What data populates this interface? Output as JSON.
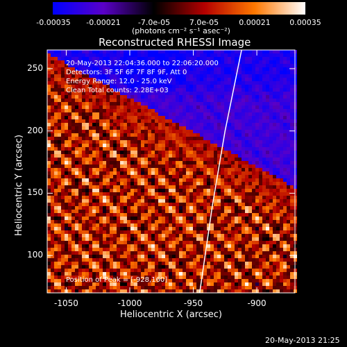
{
  "colorbar": {
    "ticks": [
      "-0.00035",
      "-0.00021",
      "-7.0e-05",
      "7.0e-05",
      "0.00021",
      "0.00035"
    ],
    "unit_label": "(photons cm⁻² s⁻¹ asec⁻²)",
    "range": [
      -0.00035,
      0.00035
    ],
    "colormap": [
      "#0000ff",
      "#5a00c8",
      "#000000",
      "#b40000",
      "#ff7800",
      "#ffffff"
    ]
  },
  "title": "Reconstructed RHESSI Image",
  "annotations": {
    "time_range": "20-May-2013 22:04:36.000 to 22:06:20.000",
    "detectors": "Detectors: 3F 5F 6F 7F 8F 9F, Att 0",
    "energy_range": "Energy Range: 12.0 - 25.0 keV",
    "clean": "Clean     Total counts: 2.28E+03",
    "peak": "Position of Peak = [-928,160]"
  },
  "footer_timestamp": "20-May-2013 21:25",
  "chart_data": {
    "type": "heatmap",
    "title": "Reconstructed RHESSI Image",
    "xlabel": "Heliocentric X (arcsec)",
    "ylabel": "Heliocentric Y (arcsec)",
    "xlim": [
      -1065,
      -870
    ],
    "ylim": [
      70,
      265
    ],
    "xticks": [
      -1050,
      -1000,
      -950,
      -900
    ],
    "yticks": [
      100,
      150,
      200,
      250
    ],
    "peak": [
      -928,
      160
    ],
    "limb_line": [
      [
        -945,
        70
      ],
      [
        -935,
        140
      ],
      [
        -925,
        200
      ],
      [
        -912,
        265
      ]
    ],
    "grid": false
  }
}
